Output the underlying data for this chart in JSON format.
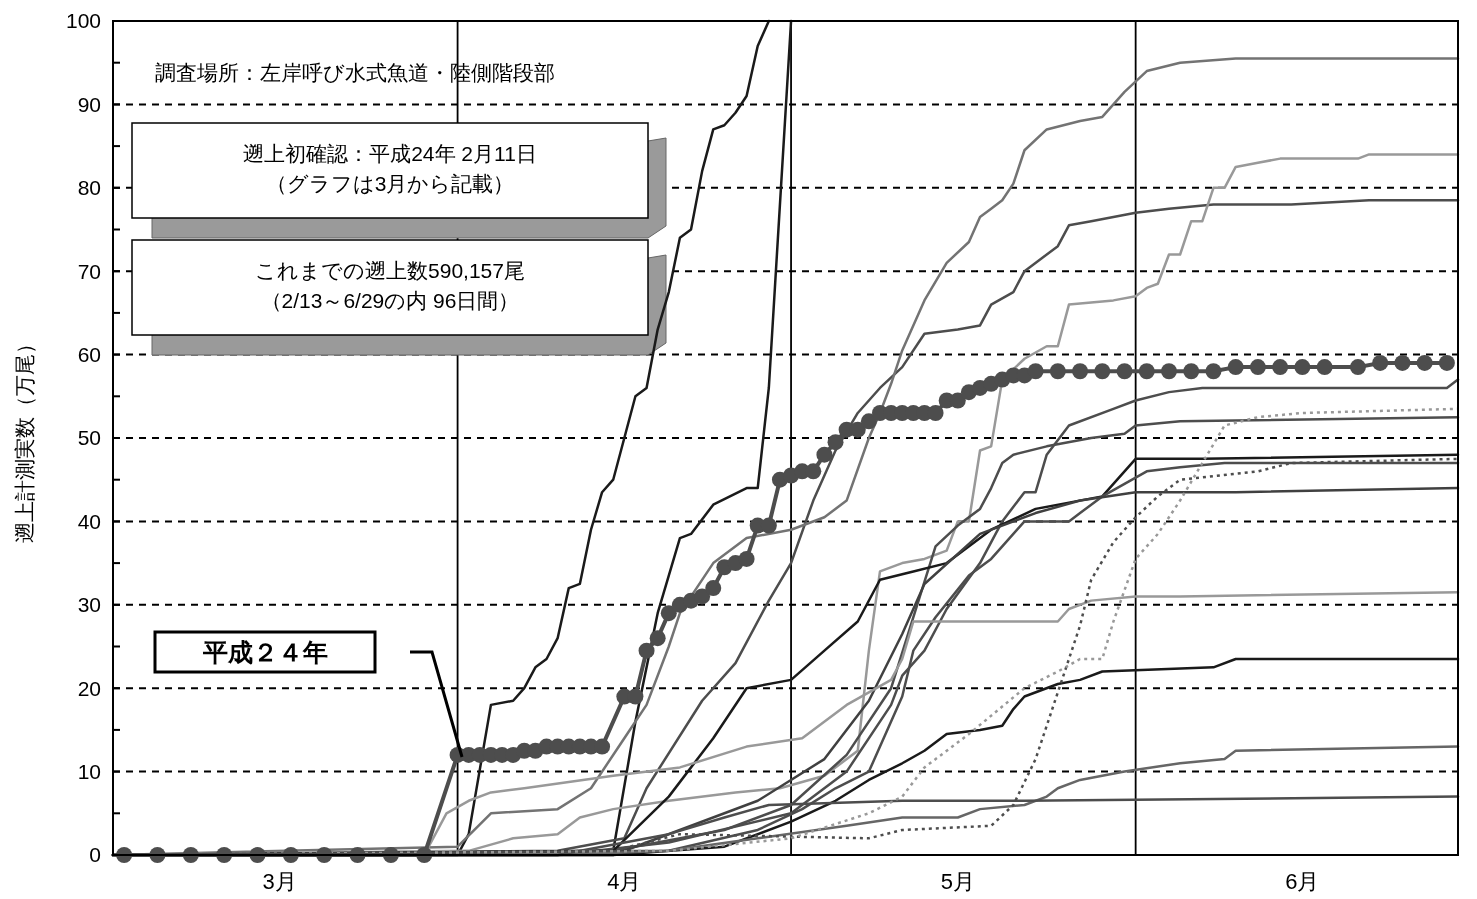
{
  "chart_data": {
    "type": "line",
    "ylabel": "遡上計測実数（万尾）",
    "xlim": [
      "--03-01",
      "--06-30"
    ],
    "xticks": [
      {
        "value": "--03-16",
        "label": "3月"
      },
      {
        "value": "--04-16",
        "label": "4月"
      },
      {
        "value": "--05-16",
        "label": "5月"
      },
      {
        "value": "--06-16",
        "label": "6月"
      }
    ],
    "ylim": [
      0,
      100
    ],
    "yticks": [
      0,
      {
        "value": 5,
        "label": null
      },
      10,
      {
        "value": 15,
        "label": null
      },
      20,
      {
        "value": 25,
        "label": null
      },
      30,
      {
        "value": 35,
        "label": null
      },
      40,
      {
        "value": 45,
        "label": null
      },
      50,
      {
        "value": 55,
        "label": null
      },
      60,
      {
        "value": 65,
        "label": null
      },
      70,
      {
        "value": 75,
        "label": null
      },
      80,
      {
        "value": 85,
        "label": null
      },
      90,
      {
        "value": 95,
        "label": null
      },
      100
    ],
    "grid": "y",
    "ref_lines": [
      {
        "axis": "x",
        "value": "--04-01",
        "color": "#000000"
      },
      {
        "axis": "x",
        "value": "--05-01",
        "color": "#000000"
      },
      {
        "axis": "x",
        "value": "--06-01",
        "color": "#000000"
      }
    ],
    "annotations": [
      "調査場所：左岸呼び水式魚道・陸側階段部",
      "遡上初確認：平成24年 2月11日",
      "（グラフは3月から記載）",
      "これまでの遡上数590,157尾",
      "（2/13～6/29の内 96日間）",
      "平成２４年"
    ],
    "series": [
      {
        "color": "#1a1a1a",
        "x": [
          "--03-01",
          "--04-01",
          "--04-02",
          "--04-04",
          "--04-06",
          "--04-07",
          "--04-08",
          "--04-09",
          "--04-10",
          "--04-11",
          "--04-12",
          "--04-13",
          "--04-14",
          "--04-15",
          "--04-16",
          "--04-17",
          "--04-18",
          "--04-19",
          "--04-20",
          "--04-21",
          "--04-22",
          "--04-23",
          "--04-24",
          "--04-25",
          "--04-26",
          "--04-27",
          "--04-28",
          "--04-29"
        ],
        "values": [
          0,
          0,
          2.5,
          18,
          18.5,
          20,
          22.5,
          23.5,
          26,
          32,
          32.5,
          39,
          43.5,
          45,
          50,
          55,
          56,
          63,
          67.5,
          74,
          75,
          82,
          87,
          87.5,
          89,
          91,
          97,
          100
        ]
      },
      {
        "color": "#1a1a1a",
        "x": [
          "--03-01",
          "--04-15",
          "--04-17",
          "--04-19",
          "--04-21",
          "--04-22",
          "--04-24",
          "--04-27",
          "--04-28",
          "--04-29",
          "--05-01"
        ],
        "values": [
          0,
          0.5,
          16,
          29,
          38,
          38.5,
          42,
          44,
          44,
          56,
          100
        ]
      },
      {
        "color": "#4d4d4d",
        "x": [
          "--03-01",
          "--04-10",
          "--04-16",
          "--04-18",
          "--04-23",
          "--04-26",
          "--04-29",
          "--05-01",
          "--05-03",
          "--05-05",
          "--05-07",
          "--05-09",
          "--05-11",
          "--05-13",
          "--05-16",
          "--05-18",
          "--05-19",
          "--05-21",
          "--05-22",
          "--05-25",
          "--05-26",
          "--05-28",
          "--05-30",
          "--06-01",
          "--06-04",
          "--06-08",
          "--06-15",
          "--06-22",
          "--06-30"
        ],
        "values": [
          0,
          0.5,
          2,
          8,
          18.5,
          23,
          30.5,
          35,
          42.5,
          48.5,
          53,
          56,
          58.5,
          62.5,
          63,
          63.5,
          66,
          67.5,
          70,
          73,
          75.5,
          76,
          76.5,
          77,
          77.5,
          78,
          78,
          78.5,
          78.5
        ]
      },
      {
        "color": "#737373",
        "x": [
          "--03-01",
          "--04-01",
          "--04-04",
          "--04-10",
          "--04-13",
          "--04-16",
          "--04-18",
          "--04-20",
          "--04-21",
          "--04-24",
          "--04-27",
          "--05-01",
          "--05-04",
          "--05-06",
          "--05-08",
          "--05-09",
          "--05-10",
          "--05-11",
          "--05-13",
          "--05-15",
          "--05-17",
          "--05-18",
          "--05-19",
          "--05-20",
          "--05-21",
          "--05-22",
          "--05-24",
          "--05-27",
          "--05-29",
          "--05-31",
          "--06-02",
          "--06-05",
          "--06-10",
          "--06-30"
        ],
        "values": [
          0,
          1,
          5,
          5.5,
          8,
          14,
          18,
          25,
          29,
          35,
          38,
          39,
          40.5,
          42.5,
          50,
          53,
          56.5,
          60.5,
          66.5,
          71,
          73.5,
          76.5,
          77.5,
          78.5,
          80.5,
          84.5,
          87,
          88,
          88.5,
          91.5,
          94,
          95,
          95.5,
          95.5
        ]
      },
      {
        "color": "#999999",
        "x": [
          "--03-01",
          "--04-02",
          "--04-06",
          "--04-10",
          "--04-12",
          "--04-15",
          "--04-20",
          "--04-26",
          "--04-30",
          "--05-04",
          "--05-07",
          "--05-08",
          "--05-09",
          "--05-11",
          "--05-13",
          "--05-15",
          "--05-16",
          "--05-17",
          "--05-18",
          "--05-19",
          "--05-20",
          "--05-22",
          "--05-24",
          "--05-25",
          "--05-26",
          "--05-30",
          "--06-01",
          "--06-02",
          "--06-03",
          "--06-04",
          "--06-05",
          "--06-06",
          "--06-07",
          "--06-08",
          "--06-09",
          "--06-10",
          "--06-12",
          "--06-14",
          "--06-21",
          "--06-22",
          "--06-30"
        ],
        "values": [
          0,
          0.5,
          2,
          2.5,
          4.5,
          5.5,
          6.5,
          7.5,
          8,
          9.5,
          12.5,
          24.5,
          34,
          35,
          35.5,
          36.5,
          40,
          40,
          48.5,
          49,
          57,
          59.5,
          61,
          61,
          66,
          66.5,
          67,
          68,
          68.5,
          72,
          72,
          76,
          76,
          80,
          80,
          82.5,
          83,
          83.5,
          83.5,
          84,
          84
        ]
      },
      {
        "color": "#4d4d4d",
        "x": [
          "--03-01",
          "--04-10",
          "--04-20",
          "--05-01",
          "--05-06",
          "--05-10",
          "--05-11",
          "--05-13",
          "--05-15",
          "--05-18",
          "--05-20",
          "--05-22",
          "--05-23",
          "--05-24",
          "--05-26",
          "--05-30",
          "--06-01",
          "--06-04",
          "--06-07",
          "--06-11",
          "--06-29",
          "--06-30"
        ],
        "values": [
          0,
          0,
          1.5,
          5,
          10,
          18,
          21.5,
          24.5,
          29.5,
          35,
          40,
          43.5,
          43.5,
          48,
          51.5,
          53.5,
          54.5,
          55.5,
          56,
          56,
          56,
          57
        ]
      },
      {
        "color": "#4d4d4d",
        "x": [
          "--03-01",
          "--04-15",
          "--04-25",
          "--05-01",
          "--05-06",
          "--05-10",
          "--05-14",
          "--05-16",
          "--05-18",
          "--05-19",
          "--05-20",
          "--05-21",
          "--05-24",
          "--05-28",
          "--05-31",
          "--06-01",
          "--06-05",
          "--06-30"
        ],
        "values": [
          0,
          0.5,
          3,
          6,
          12,
          20,
          37,
          39.5,
          41.5,
          44,
          47,
          48,
          49,
          50,
          50.5,
          51.5,
          52,
          52.5
        ]
      },
      {
        "color": "#1a1a1a",
        "x": [
          "--03-01",
          "--04-15",
          "--04-20",
          "--04-24",
          "--04-27",
          "--05-01",
          "--05-04",
          "--05-07",
          "--05-09",
          "--05-12",
          "--05-15",
          "--05-19",
          "--05-23",
          "--05-29",
          "--06-01",
          "--06-07",
          "--06-30"
        ],
        "values": [
          0,
          0.5,
          7,
          14,
          20,
          21,
          24.5,
          28,
          33,
          34,
          35,
          39,
          41.5,
          43,
          47.5,
          47.5,
          48
        ]
      },
      {
        "color": "#4d4d4d",
        "x": [
          "--03-01",
          "--04-20",
          "--04-28",
          "--05-02",
          "--05-05",
          "--05-08",
          "--05-10",
          "--05-11",
          "--05-12",
          "--05-14",
          "--05-17",
          "--05-19",
          "--05-20",
          "--05-22",
          "--05-26",
          "--05-27",
          "--05-29",
          "--05-31",
          "--06-02",
          "--06-05",
          "--06-09",
          "--06-29",
          "--06-30"
        ],
        "values": [
          0,
          0.5,
          3,
          5.5,
          8,
          10,
          16,
          19,
          24.5,
          28.5,
          33.5,
          35.5,
          37,
          40,
          40,
          41,
          43,
          44.5,
          46,
          46.5,
          47,
          47,
          47
        ]
      },
      {
        "color": "#404040",
        "x": [
          "--03-01",
          "--04-15",
          "--04-28",
          "--05-04",
          "--05-08",
          "--05-11",
          "--05-13",
          "--05-18",
          "--05-23",
          "--05-27",
          "--06-01",
          "--06-10",
          "--06-30"
        ],
        "values": [
          0,
          0,
          6.5,
          11.5,
          18.5,
          26.5,
          32.5,
          38.5,
          41,
          42.5,
          43.5,
          43.5,
          44
        ]
      },
      {
        "color": "#999999",
        "x": [
          "--03-01",
          "--03-29",
          "--03-31",
          "--04-02",
          "--04-04",
          "--04-07",
          "--04-15",
          "--04-21",
          "--04-27",
          "--05-02",
          "--05-06",
          "--05-10",
          "--05-11",
          "--05-12",
          "--05-25",
          "--05-26",
          "--05-28",
          "--06-01",
          "--06-05",
          "--06-30"
        ],
        "values": [
          0,
          0,
          5,
          6.5,
          7.5,
          8,
          9.5,
          10.5,
          13,
          14,
          18,
          21,
          23.5,
          28,
          28,
          29.5,
          30.5,
          31,
          31,
          31.5
        ]
      },
      {
        "color": "#1a1a1a",
        "x": [
          "--03-01",
          "--04-15",
          "--04-25",
          "--05-01",
          "--05-05",
          "--05-08",
          "--05-11",
          "--05-13",
          "--05-15",
          "--05-18",
          "--05-20",
          "--05-21",
          "--05-22",
          "--05-25",
          "--05-27",
          "--05-29",
          "--06-08",
          "--06-10",
          "--06-30"
        ],
        "values": [
          0,
          0,
          1,
          4,
          6.5,
          9,
          11,
          12.5,
          14.5,
          15,
          15.5,
          17.5,
          19,
          20.5,
          21,
          22,
          22.5,
          23.5,
          23.5
        ]
      },
      {
        "color": "#666666",
        "x": [
          "--03-01",
          "--04-10",
          "--04-20",
          "--04-28",
          "--05-06",
          "--05-11",
          "--05-16",
          "--05-18",
          "--05-22",
          "--05-24",
          "--05-25",
          "--05-27",
          "--05-31",
          "--06-05",
          "--06-09",
          "--06-10",
          "--06-30"
        ],
        "values": [
          0,
          0,
          0.5,
          2,
          3.5,
          4.5,
          4.5,
          5.5,
          6,
          7,
          8,
          9,
          10,
          11,
          11.5,
          12.5,
          13
        ]
      },
      {
        "color": "#4d4d4d",
        "x": [
          "--03-01",
          "--04-10",
          "--04-20",
          "--04-25",
          "--04-29",
          "--05-11",
          "--05-22",
          "--06-30"
        ],
        "values": [
          0,
          0,
          2.5,
          4.5,
          6,
          6.5,
          6.5,
          7
        ]
      },
      {
        "color": "#4d4d4d",
        "line_style": "dotted",
        "x": [
          "--03-01",
          "--04-15",
          "--04-21",
          "--05-08",
          "--05-11",
          "--05-19",
          "--05-21",
          "--05-23",
          "--05-25",
          "--05-27",
          "--05-28",
          "--05-30",
          "--06-01",
          "--06-03",
          "--06-05",
          "--06-12",
          "--06-15",
          "--06-30"
        ],
        "values": [
          0,
          0.5,
          2.5,
          2,
          3,
          3.5,
          6,
          11.5,
          19.5,
          27.5,
          33,
          37.5,
          40.5,
          43,
          45,
          46,
          47,
          47.5
        ]
      },
      {
        "color": "#999999",
        "line_style": "dotted",
        "x": [
          "--03-01",
          "--04-20",
          "--05-01",
          "--05-08",
          "--05-11",
          "--05-13",
          "--05-17",
          "--05-22",
          "--05-25",
          "--05-27",
          "--05-29",
          "--05-30",
          "--06-01",
          "--06-03",
          "--06-05",
          "--06-07",
          "--06-09",
          "--06-12",
          "--06-16",
          "--06-30"
        ],
        "values": [
          0,
          0.5,
          2,
          5,
          7,
          10.5,
          14.5,
          20,
          22,
          23.5,
          23.5,
          28,
          35.5,
          38.5,
          42.5,
          47,
          51.5,
          52.5,
          53,
          53.5
        ]
      },
      {
        "color": "#4d4d4d",
        "marker": "circle",
        "x": [
          "--03-02",
          "--03-05",
          "--03-08",
          "--03-11",
          "--03-14",
          "--03-17",
          "--03-20",
          "--03-23",
          "--03-26",
          "--03-29",
          "--04-01",
          "--04-02",
          "--04-03",
          "--04-04",
          "--04-05",
          "--04-06",
          "--04-07",
          "--04-08",
          "--04-09",
          "--04-10",
          "--04-11",
          "--04-12",
          "--04-13",
          "--04-14",
          "--04-16",
          "--04-17",
          "--04-18",
          "--04-19",
          "--04-20",
          "--04-21",
          "--04-22",
          "--04-23",
          "--04-24",
          "--04-25",
          "--04-26",
          "--04-27",
          "--04-28",
          "--04-29",
          "--04-30",
          "--05-01",
          "--05-02",
          "--05-03",
          "--05-04",
          "--05-05",
          "--05-06",
          "--05-07",
          "--05-08",
          "--05-09",
          "--05-10",
          "--05-11",
          "--05-12",
          "--05-13",
          "--05-14",
          "--05-15",
          "--05-16",
          "--05-17",
          "--05-18",
          "--05-19",
          "--05-20",
          "--05-21",
          "--05-22",
          "--05-23",
          "--05-25",
          "--05-27",
          "--05-29",
          "--05-31",
          "--06-02",
          "--06-04",
          "--06-06",
          "--06-08",
          "--06-10",
          "--06-12",
          "--06-14",
          "--06-16",
          "--06-18",
          "--06-21",
          "--06-23",
          "--06-25",
          "--06-27",
          "--06-29"
        ],
        "values": [
          0,
          0,
          0,
          0,
          0,
          0,
          0,
          0,
          0,
          0,
          12,
          12,
          12,
          12,
          12,
          12,
          12.5,
          12.5,
          13,
          13,
          13,
          13,
          13,
          13,
          19,
          19,
          24.5,
          26,
          29,
          30,
          30.5,
          31,
          32,
          34.5,
          35,
          35.5,
          39.5,
          39.5,
          45,
          45.5,
          46,
          46,
          48,
          49.5,
          51,
          51,
          52,
          53,
          53,
          53,
          53,
          53,
          53,
          54.5,
          54.5,
          55.5,
          56,
          56.5,
          57,
          57.5,
          57.5,
          58,
          58,
          58,
          58,
          58,
          58,
          58,
          58,
          58,
          58.5,
          58.5,
          58.5,
          58.5,
          58.5,
          58.5,
          59,
          59,
          59,
          59
        ]
      }
    ]
  }
}
